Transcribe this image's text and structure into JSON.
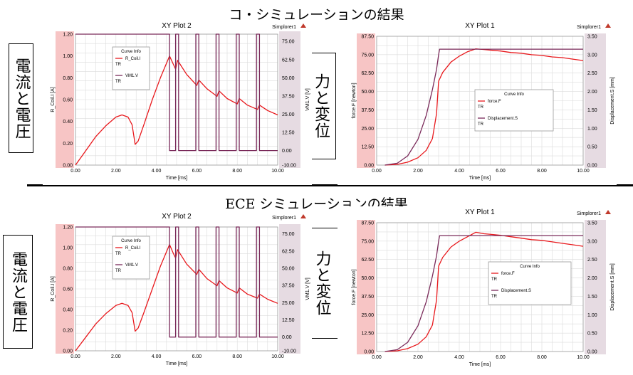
{
  "figure": {
    "title_top": "コ・シミュレーションの結果",
    "title_bottom": "ECE シミュレーションの結果",
    "label_current_voltage": "電流と電圧",
    "label_force_displacement": "力と変位"
  },
  "colors": {
    "red": "#e8181c",
    "purple": "#7a2a5a",
    "pink_axis_band": "#f7c5c5",
    "lilac_axis_band": "#e6dbe2"
  },
  "chart_data": [
    {
      "type": "line",
      "title": "XY Plot 2",
      "app_label": "Simplorer1",
      "xlabel": "Time [ms]",
      "ylabel": "R_Coil.I [A]",
      "y2label": "VM1.V [V]",
      "xlim": [
        0,
        10
      ],
      "ylim": [
        0,
        1.2
      ],
      "y2lim": [
        -10,
        80
      ],
      "x_ticks": [
        "0.00",
        "2.00",
        "4.00",
        "6.00",
        "8.00",
        "10.00"
      ],
      "y_ticks": [
        "0.00",
        "0.20",
        "0.40",
        "0.60",
        "0.80",
        "1.00",
        "1.20"
      ],
      "y2_ticks": [
        "-10.00",
        "0.00",
        "12.50",
        "25.00",
        "37.50",
        "50.00",
        "62.50",
        "75.00"
      ],
      "legend": {
        "title": "Curve Info",
        "items": [
          {
            "name": "R_Coil.I",
            "sub": "TR"
          },
          {
            "name": "VM1.V",
            "sub": "TR"
          }
        ]
      },
      "series": [
        {
          "name": "R_Coil.I",
          "axis": "left",
          "x": [
            0,
            0.5,
            1.0,
            1.5,
            2.0,
            2.3,
            2.6,
            2.8,
            2.95,
            3.1,
            3.4,
            3.8,
            4.2,
            4.65,
            4.85,
            4.95,
            5.05,
            5.5,
            6.0,
            6.1,
            6.5,
            7.0,
            7.1,
            7.5,
            8.0,
            8.1,
            8.5,
            9.0,
            9.1,
            9.5,
            10.0
          ],
          "y": [
            0,
            0.13,
            0.26,
            0.36,
            0.44,
            0.46,
            0.44,
            0.37,
            0.19,
            0.22,
            0.38,
            0.6,
            0.8,
            1.0,
            0.92,
            0.88,
            0.96,
            0.83,
            0.73,
            0.78,
            0.7,
            0.63,
            0.68,
            0.61,
            0.56,
            0.61,
            0.55,
            0.51,
            0.55,
            0.5,
            0.46
          ]
        },
        {
          "name": "VM1.V",
          "axis": "right",
          "x": [
            0,
            4.65,
            4.65,
            4.95,
            4.95,
            5.1,
            5.1,
            5.95,
            5.95,
            6.1,
            6.1,
            6.95,
            6.95,
            7.1,
            7.1,
            7.95,
            7.95,
            8.1,
            8.1,
            8.95,
            8.95,
            9.1,
            9.1,
            10.0
          ],
          "y": [
            80,
            80,
            0,
            0,
            80,
            80,
            0,
            0,
            80,
            80,
            0,
            0,
            80,
            80,
            0,
            0,
            80,
            80,
            0,
            0,
            80,
            80,
            0,
            0
          ]
        }
      ]
    },
    {
      "type": "line",
      "title": "XY Plot 1",
      "app_label": "Simplorer1",
      "xlabel": "Time [ms]",
      "ylabel": "force.F [newton]",
      "y2label": "Displacement.S [mm]",
      "xlim": [
        0,
        10
      ],
      "ylim": [
        0,
        87.5
      ],
      "y2lim": [
        0,
        3.5
      ],
      "x_ticks": [
        "0.00",
        "2.00",
        "4.00",
        "6.00",
        "8.00",
        "10.00"
      ],
      "y_ticks": [
        "0.00",
        "12.50",
        "25.00",
        "37.50",
        "50.00",
        "62.50",
        "75.00",
        "87.50"
      ],
      "y2_ticks": [
        "0.00",
        "0.50",
        "1.00",
        "1.50",
        "2.00",
        "2.50",
        "3.00",
        "3.50"
      ],
      "legend": {
        "title": "Curve Info",
        "items": [
          {
            "name": "force.F",
            "sub": "TR"
          },
          {
            "name": "Displacement.S",
            "sub": "TR"
          }
        ]
      },
      "series": [
        {
          "name": "force.F",
          "axis": "left",
          "x": [
            0.4,
            1.0,
            1.5,
            2.0,
            2.4,
            2.7,
            2.9,
            3.0,
            3.2,
            3.6,
            4.0,
            4.4,
            4.8,
            5.2,
            5.6,
            6.0,
            6.5,
            7.0,
            7.5,
            8.0,
            8.5,
            9.0,
            9.5,
            10.0
          ],
          "y": [
            0,
            0.5,
            2,
            5,
            10,
            18,
            35,
            57,
            63,
            70,
            74,
            77,
            79,
            78.5,
            78,
            77.5,
            76.5,
            76,
            75,
            74.5,
            73.5,
            73,
            72,
            71
          ]
        },
        {
          "name": "Displacement.S",
          "axis": "right",
          "x": [
            0.4,
            1.0,
            1.5,
            2.0,
            2.4,
            2.7,
            2.9,
            3.0,
            3.05,
            10.0
          ],
          "y": [
            0,
            0.05,
            0.25,
            0.7,
            1.35,
            2.05,
            2.6,
            3.0,
            3.15,
            3.15
          ]
        }
      ]
    },
    {
      "type": "line",
      "title": "XY Plot 2",
      "app_label": "Simplorer1",
      "xlabel": "Time [ms]",
      "ylabel": "R_Coil.I [A]",
      "y2label": "VM1.V [V]",
      "xlim": [
        0,
        10
      ],
      "ylim": [
        0,
        1.2
      ],
      "y2lim": [
        -10,
        80
      ],
      "x_ticks": [
        "0.00",
        "2.00",
        "4.00",
        "6.00",
        "8.00",
        "10.00"
      ],
      "y_ticks": [
        "0.00",
        "0.20",
        "0.40",
        "0.60",
        "0.80",
        "1.00",
        "1.20"
      ],
      "y2_ticks": [
        "-10.00",
        "0.00",
        "12.50",
        "25.00",
        "37.50",
        "50.00",
        "62.50",
        "75.00"
      ],
      "legend": {
        "title": "Curve Info",
        "items": [
          {
            "name": "R_Coil.I",
            "sub": "TR"
          },
          {
            "name": "VM1.V",
            "sub": "TR"
          }
        ]
      },
      "series": [
        {
          "name": "R_Coil.I",
          "axis": "left",
          "x": [
            0,
            0.5,
            1.0,
            1.5,
            2.0,
            2.3,
            2.6,
            2.8,
            2.95,
            3.1,
            3.4,
            3.8,
            4.2,
            4.65,
            4.85,
            4.95,
            5.05,
            5.5,
            6.0,
            6.1,
            6.5,
            7.0,
            7.1,
            7.5,
            8.0,
            8.1,
            8.5,
            9.0,
            9.1,
            9.5,
            10.0
          ],
          "y": [
            0,
            0.13,
            0.26,
            0.36,
            0.44,
            0.46,
            0.44,
            0.37,
            0.19,
            0.22,
            0.38,
            0.6,
            0.82,
            1.03,
            0.94,
            0.9,
            0.98,
            0.84,
            0.74,
            0.79,
            0.7,
            0.63,
            0.68,
            0.61,
            0.56,
            0.61,
            0.55,
            0.51,
            0.55,
            0.5,
            0.46
          ]
        },
        {
          "name": "VM1.V",
          "axis": "right",
          "x": [
            0,
            4.65,
            4.65,
            4.95,
            4.95,
            5.1,
            5.1,
            5.95,
            5.95,
            6.1,
            6.1,
            6.95,
            6.95,
            7.1,
            7.1,
            7.95,
            7.95,
            8.1,
            8.1,
            8.95,
            8.95,
            9.1,
            9.1,
            10.0
          ],
          "y": [
            80,
            80,
            0,
            0,
            80,
            80,
            0,
            0,
            80,
            80,
            0,
            0,
            80,
            80,
            0,
            0,
            80,
            80,
            0,
            0,
            80,
            80,
            0,
            0
          ]
        }
      ]
    },
    {
      "type": "line",
      "title": "XY Plot 1",
      "app_label": "Simplorer1",
      "xlabel": "Time [ms]",
      "ylabel": "force.F [newton]",
      "y2label": "Displacement.S [mm]",
      "xlim": [
        0,
        10
      ],
      "ylim": [
        0,
        87.5
      ],
      "y2lim": [
        0,
        3.5
      ],
      "x_ticks": [
        "0.00",
        "2.00",
        "4.00",
        "6.00",
        "8.00",
        "10.00"
      ],
      "y_ticks": [
        "0.00",
        "12.50",
        "25.00",
        "37.50",
        "50.00",
        "62.50",
        "75.00",
        "87.50"
      ],
      "y2_ticks": [
        "0.00",
        "0.50",
        "1.00",
        "1.50",
        "2.00",
        "2.50",
        "3.00",
        "3.50"
      ],
      "legend": {
        "title": "Curve Info",
        "items": [
          {
            "name": "force.F",
            "sub": "TR"
          },
          {
            "name": "Displacement.S",
            "sub": "TR"
          }
        ]
      },
      "series": [
        {
          "name": "force.F",
          "axis": "left",
          "x": [
            0.4,
            1.0,
            1.5,
            2.0,
            2.4,
            2.7,
            2.9,
            3.0,
            3.2,
            3.6,
            4.0,
            4.4,
            4.8,
            5.2,
            5.6,
            6.0,
            6.5,
            7.0,
            7.5,
            8.0,
            8.5,
            9.0,
            9.5,
            10.0
          ],
          "y": [
            0,
            0.5,
            2,
            5,
            10,
            18,
            35,
            58,
            64,
            71,
            75,
            78,
            81,
            80,
            79.5,
            79,
            78,
            77,
            76,
            75.5,
            74.5,
            73.5,
            72.5,
            71.5
          ]
        },
        {
          "name": "Displacement.S",
          "axis": "right",
          "x": [
            0.4,
            1.0,
            1.5,
            2.0,
            2.4,
            2.7,
            2.9,
            3.0,
            3.05,
            10.0
          ],
          "y": [
            0,
            0.05,
            0.25,
            0.7,
            1.35,
            2.05,
            2.6,
            3.0,
            3.15,
            3.15
          ]
        }
      ]
    }
  ]
}
